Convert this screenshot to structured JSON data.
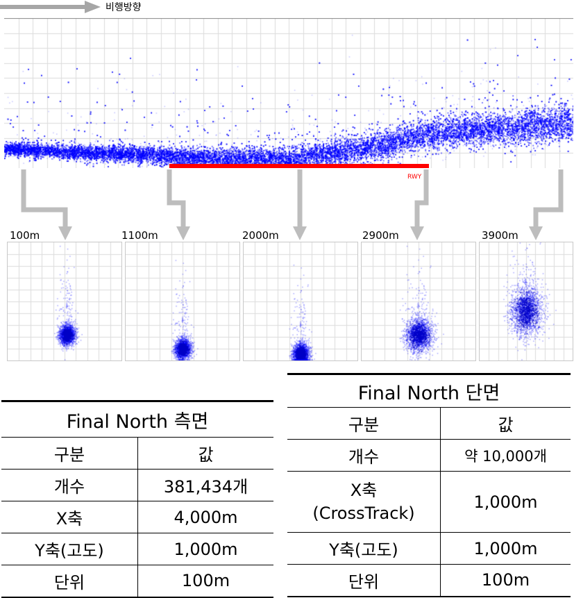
{
  "header": {
    "direction_label": "비행방향"
  },
  "runway": {
    "label": "RWY",
    "color": "#ff0000"
  },
  "colors": {
    "points": "#0000ff",
    "arrows": "#bdbdbd",
    "grid": "#dcdcdc"
  },
  "sections": [
    {
      "label": "100m"
    },
    {
      "label": "1100m"
    },
    {
      "label": "2000m"
    },
    {
      "label": "2900m"
    },
    {
      "label": "3900m"
    }
  ],
  "chart_data": [
    {
      "type": "scatter",
      "panel": "side-profile",
      "x_range": [
        0,
        4000
      ],
      "y_range": [
        0,
        1000
      ],
      "grid": true,
      "profile": {
        "x": [
          0,
          500,
          1000,
          1500,
          2000,
          2500,
          3000,
          3500,
          4000
        ],
        "y_center": [
          130,
          110,
          90,
          60,
          60,
          130,
          230,
          270,
          300
        ]
      }
    },
    {
      "type": "scatter",
      "panel": "cross-section",
      "label": "100m",
      "cluster_center": [
        0.52,
        0.22
      ],
      "spread": "small",
      "grid": true
    },
    {
      "type": "scatter",
      "panel": "cross-section",
      "label": "1100m",
      "cluster_center": [
        0.5,
        0.1
      ],
      "spread": "small",
      "grid": true
    },
    {
      "type": "scatter",
      "panel": "cross-section",
      "label": "2000m",
      "cluster_center": [
        0.5,
        0.06
      ],
      "spread": "small",
      "grid": true
    },
    {
      "type": "scatter",
      "panel": "cross-section",
      "label": "2900m",
      "cluster_center": [
        0.5,
        0.22
      ],
      "spread": "medium",
      "grid": true
    },
    {
      "type": "scatter",
      "panel": "cross-section",
      "label": "3900m",
      "cluster_center": [
        0.5,
        0.42
      ],
      "spread": "large",
      "grid": true
    }
  ],
  "table_side": {
    "title": "Final North 측면",
    "header": [
      "구분",
      "값"
    ],
    "rows": [
      [
        "개수",
        "381,434개"
      ],
      [
        "X축",
        "4,000m"
      ],
      [
        "Y축(고도)",
        "1,000m"
      ],
      [
        "단위",
        "100m"
      ]
    ]
  },
  "table_cross": {
    "title": "Final North 단면",
    "header": [
      "구분",
      "값"
    ],
    "rows": [
      [
        "개수",
        "약 10,000개"
      ],
      [
        "X축 (CrossTrack)",
        "1,000m"
      ],
      [
        "Y축(고도)",
        "1,000m"
      ],
      [
        "단위",
        "100m"
      ]
    ],
    "x_axis_label_lines": [
      "X축",
      "(CrossTrack)"
    ]
  }
}
